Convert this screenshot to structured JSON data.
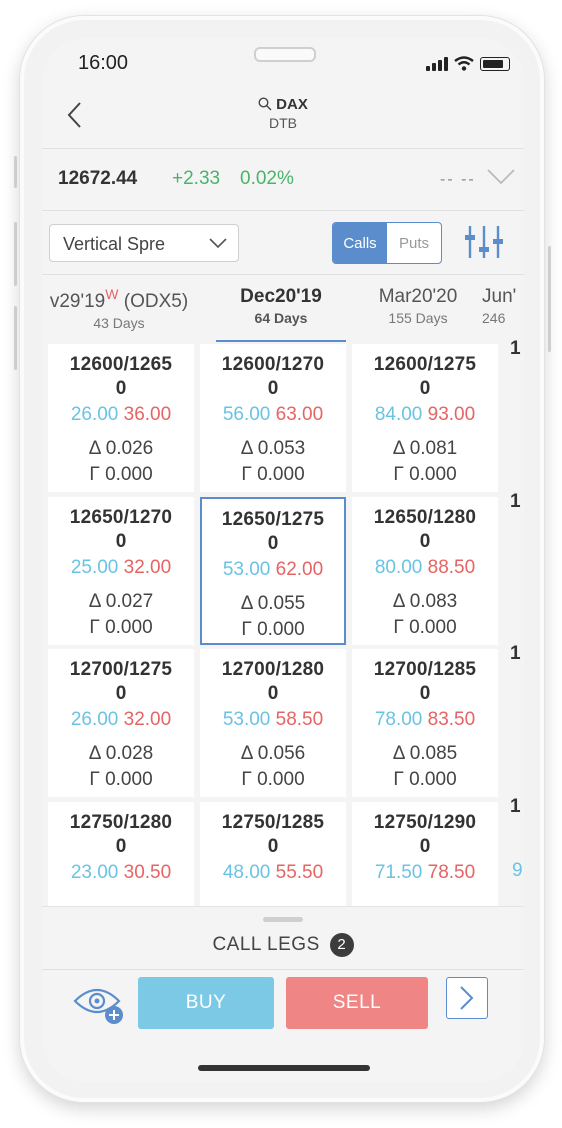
{
  "status_bar": {
    "time": "16:00"
  },
  "nav": {
    "symbol": "DAX",
    "exchange": "DTB"
  },
  "quote": {
    "price": "12672.44",
    "change": "+2.33",
    "change_pct": "0.02%",
    "extra": "-- --"
  },
  "controls": {
    "strategy": "Vertical Spre",
    "segment": [
      {
        "label": "Calls",
        "selected": true
      },
      {
        "label": "Puts",
        "selected": false
      }
    ]
  },
  "expiries": [
    {
      "date": "v29'19",
      "flag": "W",
      "suffix": " (ODX5)",
      "days": "43 Days"
    },
    {
      "date": "Dec20'19",
      "flag": "",
      "suffix": "",
      "days": "64 Days",
      "selected": true
    },
    {
      "date": "Mar20'20",
      "flag": "",
      "suffix": "",
      "days": "155 Days"
    },
    {
      "date": "Jun'",
      "flag": "",
      "suffix": "",
      "days": "246"
    }
  ],
  "grid": {
    "rows": [
      [
        {
          "k1": "12600/1265",
          "k2": "0",
          "bid": "26.00",
          "ask": "36.00",
          "delta": "Δ 0.026",
          "gamma": "Γ 0.000"
        },
        {
          "k1": "12600/1270",
          "k2": "0",
          "bid": "56.00",
          "ask": "63.00",
          "delta": "Δ 0.053",
          "gamma": "Γ 0.000"
        },
        {
          "k1": "12600/1275",
          "k2": "0",
          "bid": "84.00",
          "ask": "93.00",
          "delta": "Δ 0.081",
          "gamma": "Γ 0.000"
        }
      ],
      [
        {
          "k1": "12650/1270",
          "k2": "0",
          "bid": "25.00",
          "ask": "32.00",
          "delta": "Δ 0.027",
          "gamma": "Γ 0.000"
        },
        {
          "k1": "12650/1275",
          "k2": "0",
          "bid": "53.00",
          "ask": "62.00",
          "delta": "Δ 0.055",
          "gamma": "Γ 0.000"
        },
        {
          "k1": "12650/1280",
          "k2": "0",
          "bid": "80.00",
          "ask": "88.50",
          "delta": "Δ 0.083",
          "gamma": "Γ 0.000"
        }
      ],
      [
        {
          "k1": "12700/1275",
          "k2": "0",
          "bid": "26.00",
          "ask": "32.00",
          "delta": "Δ 0.028",
          "gamma": "Γ 0.000"
        },
        {
          "k1": "12700/1280",
          "k2": "0",
          "bid": "53.00",
          "ask": "58.50",
          "delta": "Δ 0.056",
          "gamma": "Γ 0.000"
        },
        {
          "k1": "12700/1285",
          "k2": "0",
          "bid": "78.00",
          "ask": "83.50",
          "delta": "Δ 0.085",
          "gamma": "Γ 0.000"
        }
      ],
      [
        {
          "k1": "12750/1280",
          "k2": "0",
          "bid": "23.00",
          "ask": "30.50",
          "delta": "",
          "gamma": ""
        },
        {
          "k1": "12750/1285",
          "k2": "0",
          "bid": "48.00",
          "ask": "55.50",
          "delta": "",
          "gamma": ""
        },
        {
          "k1": "12750/1290",
          "k2": "0",
          "bid": "71.50",
          "ask": "78.50",
          "delta": "",
          "gamma": ""
        }
      ]
    ],
    "edge_labels": [
      "1",
      "1",
      "1",
      "1"
    ],
    "edge_bid": "9"
  },
  "sheet": {
    "legs_label": "CALL LEGS",
    "legs_count": "2",
    "buy": "BUY",
    "sell": "SELL"
  },
  "colors": {
    "accent": "#5b8ccc",
    "bid": "#69c3e3",
    "ask": "#e56464",
    "positive": "#4ab36b",
    "buy": "#7cc9e6",
    "sell": "#ef8585"
  },
  "icons": {
    "back": "chevron-left-icon",
    "search": "search-icon",
    "dropdown": "chevron-down-icon",
    "filter": "sliders-icon",
    "watch": "eye-plus-icon",
    "next": "chevron-right-icon"
  }
}
